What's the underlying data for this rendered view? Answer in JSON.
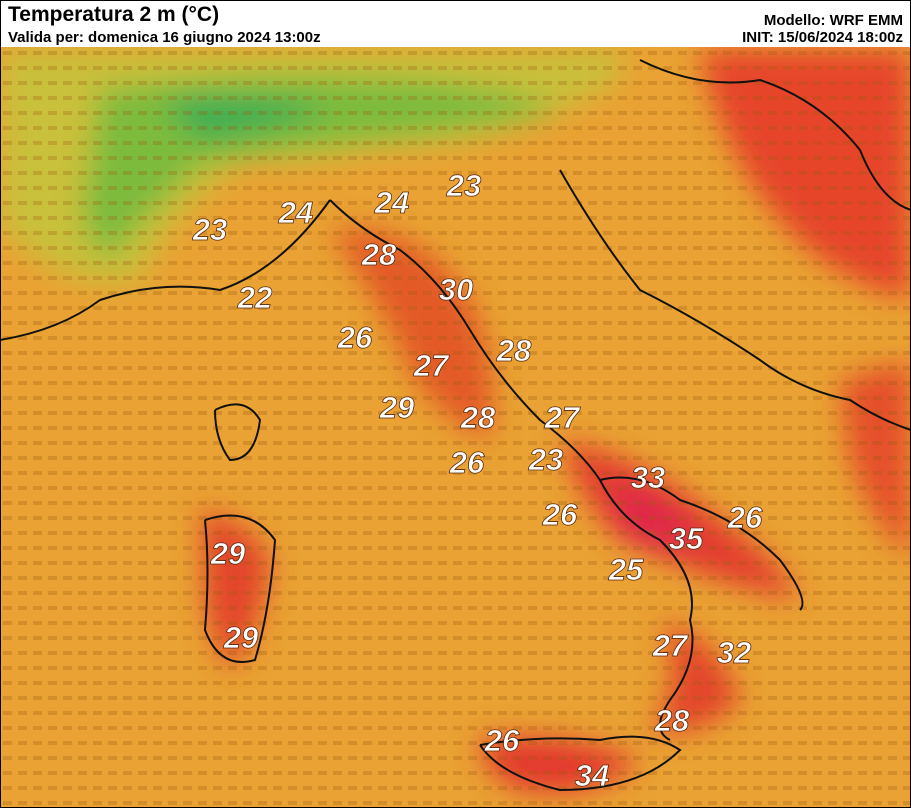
{
  "header": {
    "title": "Temperatura 2 m (°C)",
    "valid": "Valida per: domenica 16 giugno 2024 13:00z",
    "model": "Modello: WRF EMM",
    "init": "INIT: 15/06/2024 18:00z"
  },
  "labels": [
    "23",
    "24",
    "24",
    "23",
    "28",
    "22",
    "30",
    "26",
    "27",
    "28",
    "29",
    "28",
    "27",
    "23",
    "26",
    "33",
    "26",
    "26",
    "35",
    "29",
    "25",
    "29",
    "27",
    "32",
    "28",
    "26",
    "34"
  ]
}
